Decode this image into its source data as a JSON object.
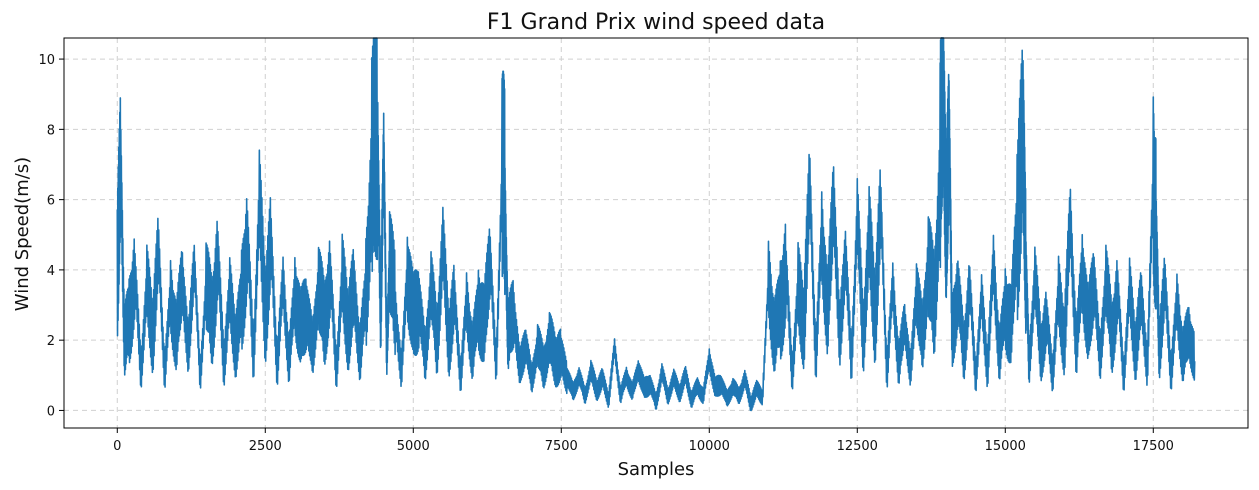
{
  "chart_data": {
    "type": "line",
    "title": "F1 Grand Prix wind speed data",
    "xlabel": "Samples",
    "ylabel": "Wind Speed(m/s)",
    "xlim": [
      -900,
      19100
    ],
    "ylim": [
      -0.5,
      10.6
    ],
    "xticks": [
      0,
      2500,
      5000,
      7500,
      10000,
      12500,
      15000,
      17500
    ],
    "yticks": [
      0,
      2,
      4,
      6,
      8,
      10
    ],
    "grid": true,
    "grid_style": "dashed",
    "legend": "none",
    "series_color": "#1f77b4",
    "sample_count": 18200,
    "series": [
      {
        "x": [
          0,
          60,
          120,
          200,
          300,
          400,
          500,
          600,
          700,
          800,
          900,
          1000,
          1100,
          1200,
          1300,
          1400,
          1500,
          1600,
          1700,
          1800,
          1900,
          2000,
          2100,
          2200,
          2300,
          2400,
          2500,
          2600,
          2700,
          2800,
          2900,
          3000,
          3100,
          3200,
          3300,
          3400,
          3500,
          3600,
          3700,
          3800,
          3900,
          4000,
          4100,
          4200,
          4300,
          4400,
          4450,
          4500,
          4550,
          4600,
          4700,
          4800,
          4900,
          5000,
          5100,
          5200,
          5300,
          5400,
          5500,
          5600,
          5700,
          5800,
          5900,
          6000,
          6100,
          6200,
          6300,
          6400,
          6500,
          6550,
          6600,
          6700,
          6800,
          6900,
          7000,
          7100,
          7200,
          7300,
          7400,
          7500,
          7600,
          7700,
          7800,
          7900,
          8000,
          8100,
          8200,
          8300,
          8400,
          8500,
          8600,
          8700,
          8800,
          8900,
          9000,
          9100,
          9200,
          9300,
          9400,
          9500,
          9600,
          9700,
          9800,
          9900,
          10000,
          10100,
          10200,
          10300,
          10400,
          10500,
          10600,
          10700,
          10800,
          10900,
          11000,
          11100,
          11200,
          11300,
          11400,
          11500,
          11600,
          11700,
          11800,
          11900,
          12000,
          12100,
          12200,
          12300,
          12400,
          12500,
          12600,
          12700,
          12800,
          12900,
          13000,
          13100,
          13200,
          13300,
          13400,
          13500,
          13600,
          13700,
          13800,
          13900,
          13950,
          14000,
          14050,
          14100,
          14200,
          14300,
          14400,
          14500,
          14600,
          14700,
          14800,
          14900,
          15000,
          15100,
          15200,
          15300,
          15350,
          15400,
          15500,
          15600,
          15700,
          15800,
          15900,
          16000,
          16100,
          16200,
          16300,
          16400,
          16500,
          16600,
          16700,
          16800,
          16900,
          17000,
          17100,
          17200,
          17300,
          17400,
          17500,
          17550,
          17600,
          17700,
          17800,
          17900,
          18000,
          18100,
          18200
        ],
        "y": [
          4.3,
          6.9,
          2.0,
          2.5,
          3.9,
          1.1,
          3.5,
          2.2,
          4.6,
          1.0,
          3.3,
          2.0,
          3.9,
          1.5,
          4.4,
          0.8,
          3.6,
          2.5,
          4.4,
          1.3,
          3.3,
          1.9,
          3.0,
          5.0,
          1.4,
          5.9,
          2.8,
          4.8,
          1.2,
          3.7,
          1.3,
          3.4,
          2.2,
          3.0,
          1.6,
          3.6,
          2.4,
          3.9,
          1.1,
          3.7,
          2.4,
          3.4,
          1.6,
          3.3,
          6.6,
          7.9,
          2.2,
          7.9,
          1.5,
          4.3,
          2.9,
          1.0,
          4.0,
          2.5,
          3.2,
          1.4,
          3.6,
          1.9,
          4.7,
          2.0,
          3.2,
          0.9,
          3.1,
          1.6,
          3.0,
          2.3,
          4.6,
          1.0,
          6.9,
          5.9,
          2.0,
          2.9,
          1.1,
          2.0,
          0.8,
          1.9,
          1.2,
          2.0,
          1.5,
          1.5,
          1.0,
          0.5,
          1.0,
          0.4,
          1.1,
          0.6,
          0.9,
          0.3,
          1.8,
          0.4,
          1.0,
          0.5,
          1.2,
          0.6,
          0.8,
          0.2,
          1.1,
          0.4,
          0.9,
          0.5,
          1.0,
          0.3,
          0.7,
          0.4,
          1.5,
          0.6,
          0.8,
          0.3,
          0.7,
          0.4,
          0.9,
          0.2,
          0.6,
          0.4,
          3.7,
          2.1,
          2.9,
          4.0,
          1.0,
          3.4,
          2.5,
          6.5,
          1.3,
          5.1,
          2.5,
          6.3,
          1.8,
          4.6,
          1.2,
          5.6,
          2.0,
          4.9,
          2.7,
          5.8,
          1.0,
          3.6,
          1.2,
          2.6,
          1.0,
          3.5,
          1.9,
          4.2,
          2.9,
          6.5,
          10.1,
          4.5,
          8.6,
          2.1,
          3.5,
          1.6,
          3.6,
          0.9,
          3.2,
          1.2,
          4.2,
          1.5,
          3.0,
          2.3,
          5.4,
          7.6,
          4.3,
          1.2,
          3.8,
          1.7,
          2.6,
          1.0,
          3.3,
          2.0,
          5.5,
          1.6,
          4.1,
          2.2,
          3.9,
          1.3,
          3.8,
          2.0,
          3.5,
          0.9,
          3.4,
          1.7,
          3.2,
          1.2,
          6.6,
          5.0,
          1.8,
          3.6,
          1.0,
          3.1,
          1.5,
          2.3,
          1.4
        ]
      }
    ]
  }
}
